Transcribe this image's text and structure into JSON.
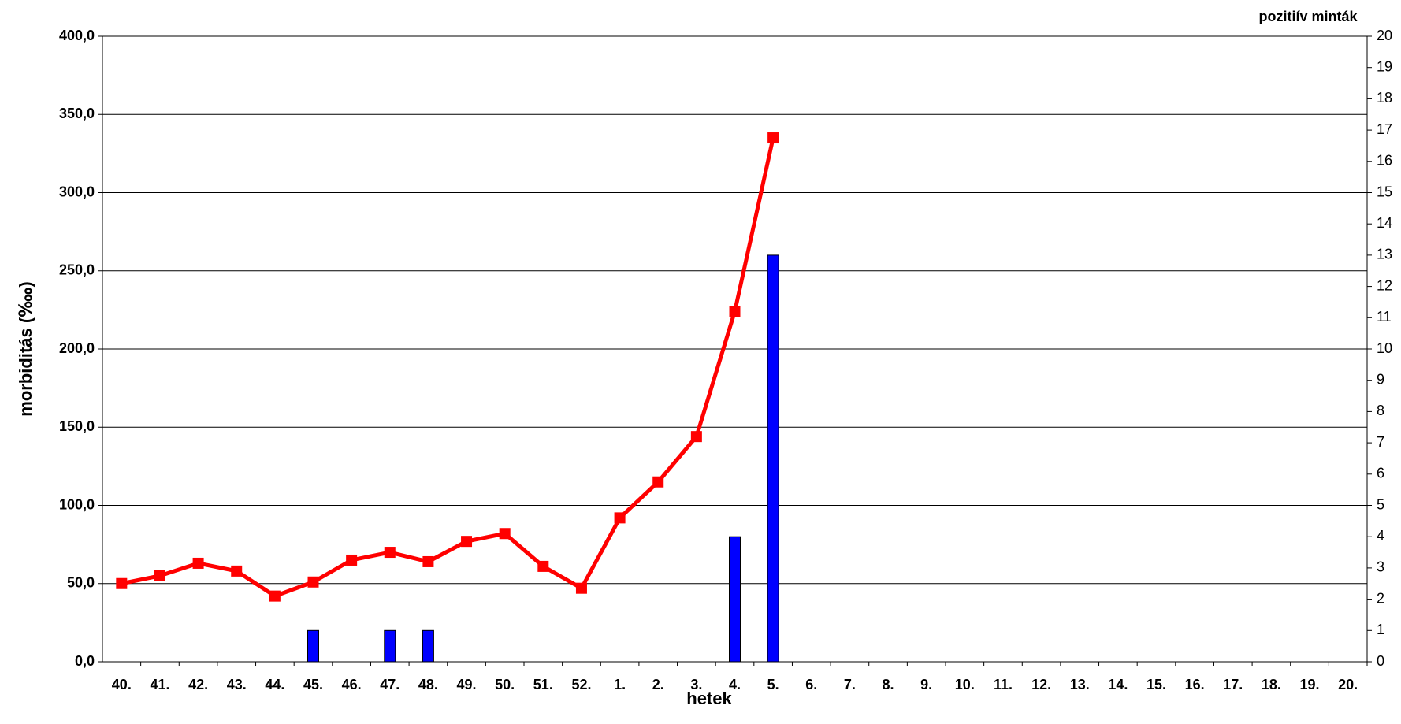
{
  "chart_data": {
    "type": "bar-line",
    "x_label": "hetek",
    "y_label": "morbiditás (‱)",
    "y2_label": "pozitiív minták",
    "categories": [
      "40.",
      "41.",
      "42.",
      "43.",
      "44.",
      "45.",
      "46.",
      "47.",
      "48.",
      "49.",
      "50.",
      "51.",
      "52.",
      "1.",
      "2.",
      "3.",
      "4.",
      "5.",
      "6.",
      "7.",
      "8.",
      "9.",
      "10.",
      "11.",
      "12.",
      "13.",
      "14.",
      "15.",
      "16.",
      "17.",
      "18.",
      "19.",
      "20."
    ],
    "series": [
      {
        "type": "bar",
        "axis": "y2",
        "color": "#0000ff",
        "values": [
          0,
          0,
          0,
          0,
          0,
          1,
          0,
          1,
          1,
          0,
          0,
          0,
          0,
          0,
          0,
          0,
          4,
          13,
          null,
          null,
          null,
          null,
          null,
          null,
          null,
          null,
          null,
          null,
          null,
          null,
          null,
          null,
          null
        ]
      },
      {
        "type": "line",
        "axis": "y",
        "color": "#ff0000",
        "values": [
          50,
          55,
          63,
          58,
          42,
          51,
          65,
          70,
          64,
          77,
          82,
          61,
          47,
          92,
          115,
          144,
          224,
          335,
          null,
          null,
          null,
          null,
          null,
          null,
          null,
          null,
          null,
          null,
          null,
          null,
          null,
          null,
          null
        ]
      }
    ],
    "ylim": [
      0,
      400
    ],
    "yticks": [
      {
        "value": 0,
        "label": "0,0"
      },
      {
        "value": 50,
        "label": "50,0"
      },
      {
        "value": 100,
        "label": "100,0"
      },
      {
        "value": 150,
        "label": "150,0"
      },
      {
        "value": 200,
        "label": "200,0"
      },
      {
        "value": 250,
        "label": "250,0"
      },
      {
        "value": 300,
        "label": "300,0"
      },
      {
        "value": 350,
        "label": "350,0"
      },
      {
        "value": 400,
        "label": "400,0"
      }
    ],
    "y2lim": [
      0,
      20
    ],
    "y2ticks": [
      0,
      1,
      2,
      3,
      4,
      5,
      6,
      7,
      8,
      9,
      10,
      11,
      12,
      13,
      14,
      15,
      16,
      17,
      18,
      19,
      20
    ],
    "grid": true
  }
}
